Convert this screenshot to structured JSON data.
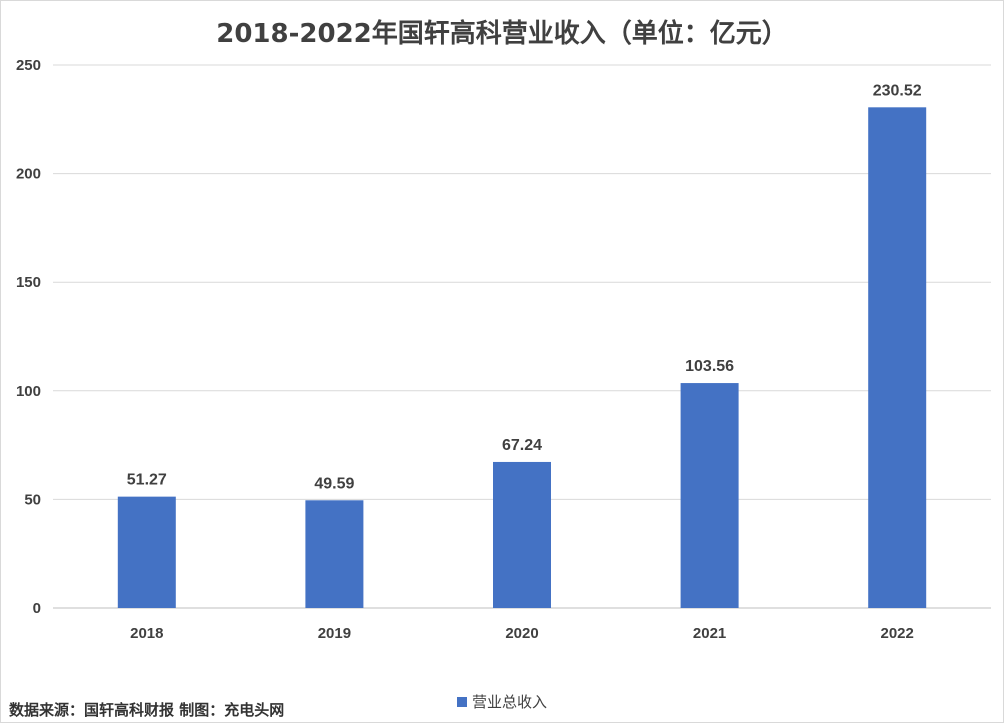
{
  "chart_data": {
    "type": "bar",
    "title": "2018-2022年国轩高科营业收入（单位：亿元）",
    "categories": [
      "2018",
      "2019",
      "2020",
      "2021",
      "2022"
    ],
    "series": [
      {
        "name": "营业总收入",
        "values": [
          51.27,
          49.59,
          67.24,
          103.56,
          230.52
        ],
        "color": "#4472C4"
      }
    ],
    "data_labels": [
      "51.27",
      "49.59",
      "67.24",
      "103.56",
      "230.52"
    ],
    "yticks": [
      0,
      50,
      100,
      150,
      200,
      250
    ],
    "ylim": [
      0,
      250
    ],
    "grid": true,
    "legend_position": "bottom"
  },
  "footer": {
    "source": "数据来源：国轩高科财报  制图：充电头网"
  }
}
